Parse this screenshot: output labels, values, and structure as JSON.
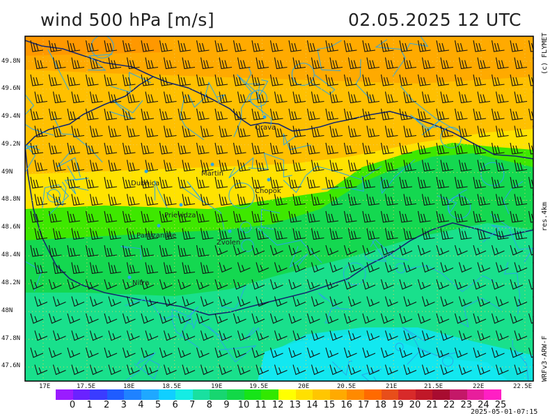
{
  "title": {
    "left": "wind 500 hPa [m/s]",
    "right": "02.05.2025   12 UTC"
  },
  "side_labels": {
    "credit": "(c) FLYMET",
    "resolution": "res.4km",
    "model": "WRFv3-ARW-F"
  },
  "lat_labels": [
    "49.8N",
    "49.6N",
    "49.4N",
    "49.2N",
    "49N",
    "48.8N",
    "48.6N",
    "48.4N",
    "48.2N",
    "48N",
    "47.8N",
    "47.6N"
  ],
  "lon_labels": [
    "17E",
    "17.5E",
    "18E",
    "18.5E",
    "19E",
    "19.5E",
    "20E",
    "20.5E",
    "21E",
    "21.5E",
    "22E",
    "22.5E"
  ],
  "colorbar": {
    "labels": [
      "0",
      "1",
      "2",
      "3",
      "4",
      "5",
      "6",
      "7",
      "8",
      "9",
      "10",
      "11",
      "12",
      "13",
      "14",
      "15",
      "16",
      "17",
      "18",
      "19",
      "20",
      "21",
      "22",
      "23",
      "24",
      "25"
    ],
    "colors": [
      "#9a1cff",
      "#6a22ff",
      "#3a3cff",
      "#1f5cff",
      "#1f82ff",
      "#1fa8ff",
      "#10cfff",
      "#15ece4",
      "#19e0a0",
      "#17d670",
      "#12d848",
      "#16e418",
      "#32e800",
      "#ffff00",
      "#ffe000",
      "#ffc600",
      "#ffaa00",
      "#ff8a00",
      "#ff6a00",
      "#e84e1a",
      "#d82a2a",
      "#c01828",
      "#a80c30",
      "#c41868",
      "#e81e9c",
      "#ff1fc4"
    ]
  },
  "cities": [
    {
      "name": "Orava"
    },
    {
      "name": "Martin"
    },
    {
      "name": "Dubnica"
    },
    {
      "name": "Chopok"
    },
    {
      "name": "Prievidza"
    },
    {
      "name": "Partizanske"
    },
    {
      "name": "Zvolen"
    },
    {
      "name": "Nitra"
    }
  ],
  "timestamp": "2025-05-01-07:15"
}
